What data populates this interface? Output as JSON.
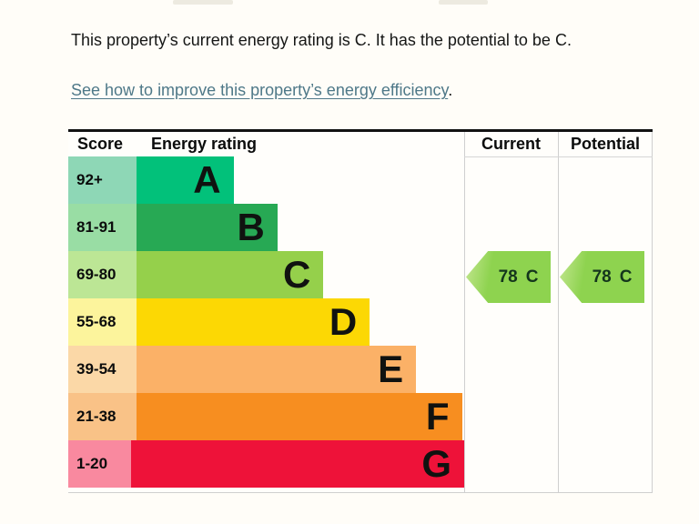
{
  "page": {
    "background": "#fffdf8"
  },
  "intro": {
    "text": "This property’s current energy rating is C. It has the potential to be C."
  },
  "improve_link": {
    "text": "See how to improve this property’s energy efficiency",
    "suffix": ".",
    "color": "#4e7888"
  },
  "chart_data": {
    "type": "table",
    "title": "EPC energy rating chart",
    "columns": {
      "score": "Score",
      "rating": "Energy rating",
      "current": "Current",
      "potential": "Potential"
    },
    "bands": [
      {
        "score": "92+",
        "letter": "A",
        "width_pct": 24.5,
        "bar_color": "#02c17a",
        "score_bg": "#8ed7b6"
      },
      {
        "score": "81-91",
        "letter": "B",
        "width_pct": 35.6,
        "bar_color": "#27a954",
        "score_bg": "#99dda4"
      },
      {
        "score": "69-80",
        "letter": "C",
        "width_pct": 47.2,
        "bar_color": "#95d04b",
        "score_bg": "#bce695"
      },
      {
        "score": "55-68",
        "letter": "D",
        "width_pct": 58.9,
        "bar_color": "#fcd804",
        "score_bg": "#fcf49c"
      },
      {
        "score": "39-54",
        "letter": "E",
        "width_pct": 70.6,
        "bar_color": "#fbb167",
        "score_bg": "#fbd8a7"
      },
      {
        "score": "21-38",
        "letter": "F",
        "width_pct": 82.2,
        "bar_color": "#f78e20",
        "score_bg": "#f9c287"
      },
      {
        "score": "1-20",
        "letter": "G",
        "width_pct": 92.8,
        "bar_color": "#ee1239",
        "score_bg": "#f9899f"
      }
    ],
    "current": {
      "value": "78",
      "band": "C",
      "arrow_color": "#8ed34f",
      "arrow_tip_color": "#c3e690"
    },
    "potential": {
      "value": "78",
      "band": "C",
      "arrow_color": "#8ed34f",
      "arrow_tip_color": "#c3e690"
    }
  }
}
